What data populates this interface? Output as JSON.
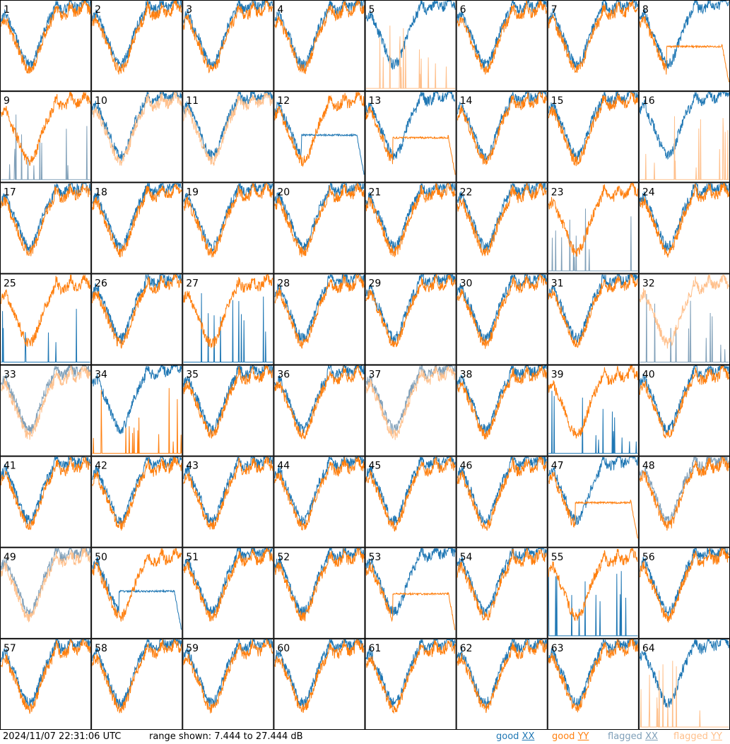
{
  "chart_data": {
    "type": "line",
    "layout": "8x8 small-multiples grid",
    "panels": [
      {
        "id": "1",
        "xx": "good",
        "yy": "good",
        "xxShape": 0,
        "yyShape": 0
      },
      {
        "id": "2",
        "xx": "good",
        "yy": "good",
        "xxShape": 0,
        "yyShape": 0
      },
      {
        "id": "3",
        "xx": "good",
        "yy": "good",
        "xxShape": 0,
        "yyShape": 0
      },
      {
        "id": "4",
        "xx": "good",
        "yy": "good",
        "xxShape": 0,
        "yyShape": 0
      },
      {
        "id": "5",
        "xx": "good",
        "yy": "flagged",
        "xxShape": 0,
        "yyShape": "spikes"
      },
      {
        "id": "6",
        "xx": "good",
        "yy": "good",
        "xxShape": 0,
        "yyShape": 0
      },
      {
        "id": "7",
        "xx": "good",
        "yy": "good",
        "xxShape": 0,
        "yyShape": 0
      },
      {
        "id": "8",
        "xx": "good",
        "yy": "good",
        "xxShape": 0,
        "yyShape": "flat-drop"
      },
      {
        "id": "9",
        "xx": "flagged",
        "yy": "good",
        "xxShape": "spikes",
        "yyShape": 0
      },
      {
        "id": "10",
        "xx": "good",
        "yy": "flagged",
        "xxShape": 0,
        "yyShape": 0
      },
      {
        "id": "11",
        "xx": "good",
        "yy": "flagged",
        "xxShape": 0,
        "yyShape": 0
      },
      {
        "id": "12",
        "xx": "good",
        "yy": "good",
        "xxShape": "flat-drop",
        "yyShape": 0
      },
      {
        "id": "13",
        "xx": "good",
        "yy": "good",
        "xxShape": 0,
        "yyShape": "flat-drop"
      },
      {
        "id": "14",
        "xx": "good",
        "yy": "good",
        "xxShape": 0,
        "yyShape": 0
      },
      {
        "id": "15",
        "xx": "good",
        "yy": "good",
        "xxShape": 0,
        "yyShape": 0
      },
      {
        "id": "16",
        "xx": "good",
        "yy": "flagged",
        "xxShape": 0,
        "yyShape": "spikes"
      },
      {
        "id": "17",
        "xx": "good",
        "yy": "good",
        "xxShape": 0,
        "yyShape": 0
      },
      {
        "id": "18",
        "xx": "good",
        "yy": "good",
        "xxShape": 0,
        "yyShape": 0
      },
      {
        "id": "19",
        "xx": "good",
        "yy": "good",
        "xxShape": 0,
        "yyShape": 0
      },
      {
        "id": "20",
        "xx": "good",
        "yy": "good",
        "xxShape": 0,
        "yyShape": 0
      },
      {
        "id": "21",
        "xx": "good",
        "yy": "good",
        "xxShape": 0,
        "yyShape": 0
      },
      {
        "id": "22",
        "xx": "good",
        "yy": "good",
        "xxShape": 0,
        "yyShape": 0
      },
      {
        "id": "23",
        "xx": "flagged",
        "yy": "good",
        "xxShape": "spikes",
        "yyShape": 0
      },
      {
        "id": "24",
        "xx": "good",
        "yy": "good",
        "xxShape": 0,
        "yyShape": 0
      },
      {
        "id": "25",
        "xx": "good",
        "yy": "good",
        "xxShape": "spikes",
        "yyShape": 0
      },
      {
        "id": "26",
        "xx": "good",
        "yy": "good",
        "xxShape": 0,
        "yyShape": 0
      },
      {
        "id": "27",
        "xx": "good",
        "yy": "good",
        "xxShape": "spikes",
        "yyShape": 0
      },
      {
        "id": "28",
        "xx": "good",
        "yy": "good",
        "xxShape": 0,
        "yyShape": 0
      },
      {
        "id": "29",
        "xx": "good",
        "yy": "good",
        "xxShape": 0,
        "yyShape": 0
      },
      {
        "id": "30",
        "xx": "good",
        "yy": "good",
        "xxShape": 0,
        "yyShape": 0
      },
      {
        "id": "31",
        "xx": "good",
        "yy": "good",
        "xxShape": 0,
        "yyShape": 0
      },
      {
        "id": "32",
        "xx": "flagged",
        "yy": "flagged",
        "xxShape": "spikes",
        "yyShape": 0
      },
      {
        "id": "33",
        "xx": "flagged",
        "yy": "flagged",
        "xxShape": 0,
        "yyShape": 0
      },
      {
        "id": "34",
        "xx": "good",
        "yy": "good",
        "xxShape": 0,
        "yyShape": "spikes"
      },
      {
        "id": "35",
        "xx": "good",
        "yy": "good",
        "xxShape": 0,
        "yyShape": 0
      },
      {
        "id": "36",
        "xx": "good",
        "yy": "good",
        "xxShape": 0,
        "yyShape": 0
      },
      {
        "id": "37",
        "xx": "flagged",
        "yy": "flagged",
        "xxShape": 0,
        "yyShape": 0
      },
      {
        "id": "38",
        "xx": "good",
        "yy": "good",
        "xxShape": 0,
        "yyShape": 0
      },
      {
        "id": "39",
        "xx": "good",
        "yy": "good",
        "xxShape": "spikes",
        "yyShape": 0
      },
      {
        "id": "40",
        "xx": "good",
        "yy": "good",
        "xxShape": 0,
        "yyShape": 0
      },
      {
        "id": "41",
        "xx": "good",
        "yy": "good",
        "xxShape": 0,
        "yyShape": 0
      },
      {
        "id": "42",
        "xx": "good",
        "yy": "good",
        "xxShape": 0,
        "yyShape": 0
      },
      {
        "id": "43",
        "xx": "good",
        "yy": "good",
        "xxShape": 0,
        "yyShape": 0
      },
      {
        "id": "44",
        "xx": "good",
        "yy": "good",
        "xxShape": 0,
        "yyShape": 0
      },
      {
        "id": "45",
        "xx": "good",
        "yy": "good",
        "xxShape": 0,
        "yyShape": 0
      },
      {
        "id": "46",
        "xx": "good",
        "yy": "good",
        "xxShape": 0,
        "yyShape": 0
      },
      {
        "id": "47",
        "xx": "good",
        "yy": "good",
        "xxShape": 0,
        "yyShape": "flat-drop"
      },
      {
        "id": "48",
        "xx": "flagged",
        "yy": "good",
        "xxShape": 0,
        "yyShape": 0
      },
      {
        "id": "49",
        "xx": "flagged",
        "yy": "flagged",
        "xxShape": 0,
        "yyShape": 0
      },
      {
        "id": "50",
        "xx": "good",
        "yy": "good",
        "xxShape": "flat-drop",
        "yyShape": 0
      },
      {
        "id": "51",
        "xx": "good",
        "yy": "good",
        "xxShape": 0,
        "yyShape": 0
      },
      {
        "id": "52",
        "xx": "good",
        "yy": "good",
        "xxShape": 0,
        "yyShape": 0
      },
      {
        "id": "53",
        "xx": "good",
        "yy": "good",
        "xxShape": 0,
        "yyShape": "flat-drop"
      },
      {
        "id": "54",
        "xx": "good",
        "yy": "good",
        "xxShape": 0,
        "yyShape": 0
      },
      {
        "id": "55",
        "xx": "good",
        "yy": "good",
        "xxShape": "spikes",
        "yyShape": 0
      },
      {
        "id": "56",
        "xx": "good",
        "yy": "good",
        "xxShape": 0,
        "yyShape": 0
      },
      {
        "id": "57",
        "xx": "good",
        "yy": "good",
        "xxShape": 0,
        "yyShape": 0
      },
      {
        "id": "58",
        "xx": "good",
        "yy": "good",
        "xxShape": 0,
        "yyShape": 0
      },
      {
        "id": "59",
        "xx": "good",
        "yy": "good",
        "xxShape": 0,
        "yyShape": 0
      },
      {
        "id": "60",
        "xx": "good",
        "yy": "good",
        "xxShape": 0,
        "yyShape": 0
      },
      {
        "id": "61",
        "xx": "good",
        "yy": "good",
        "xxShape": 0,
        "yyShape": 0
      },
      {
        "id": "62",
        "xx": "good",
        "yy": "good",
        "xxShape": 0,
        "yyShape": 0
      },
      {
        "id": "63",
        "xx": "good",
        "yy": "good",
        "xxShape": 0,
        "yyShape": 0
      },
      {
        "id": "64",
        "xx": "good",
        "yy": "flagged",
        "xxShape": 0,
        "yyShape": "spikes"
      }
    ],
    "ylim": [
      7.444,
      27.444
    ],
    "unit": "dB",
    "grid": false,
    "legend_placement": "bottom-right"
  },
  "footer": {
    "timestamp": "2024/11/07 22:31:06 UTC",
    "range_text": "range shown: 7.444 to 27.444 dB"
  },
  "legend": [
    {
      "prefix": "good",
      "pol": "XX",
      "color": "#1f77b4"
    },
    {
      "prefix": "good",
      "pol": "YY",
      "color": "#ff7f0e"
    },
    {
      "prefix": "flagged",
      "pol": "XX",
      "color": "#7f9fb8"
    },
    {
      "prefix": "flagged",
      "pol": "YY",
      "color": "#ffc08c"
    }
  ],
  "colors": {
    "good_xx": "#1f77b4",
    "good_yy": "#ff7f0e",
    "flagged_xx": "#7f9fb8",
    "flagged_yy": "#ffc08c"
  }
}
